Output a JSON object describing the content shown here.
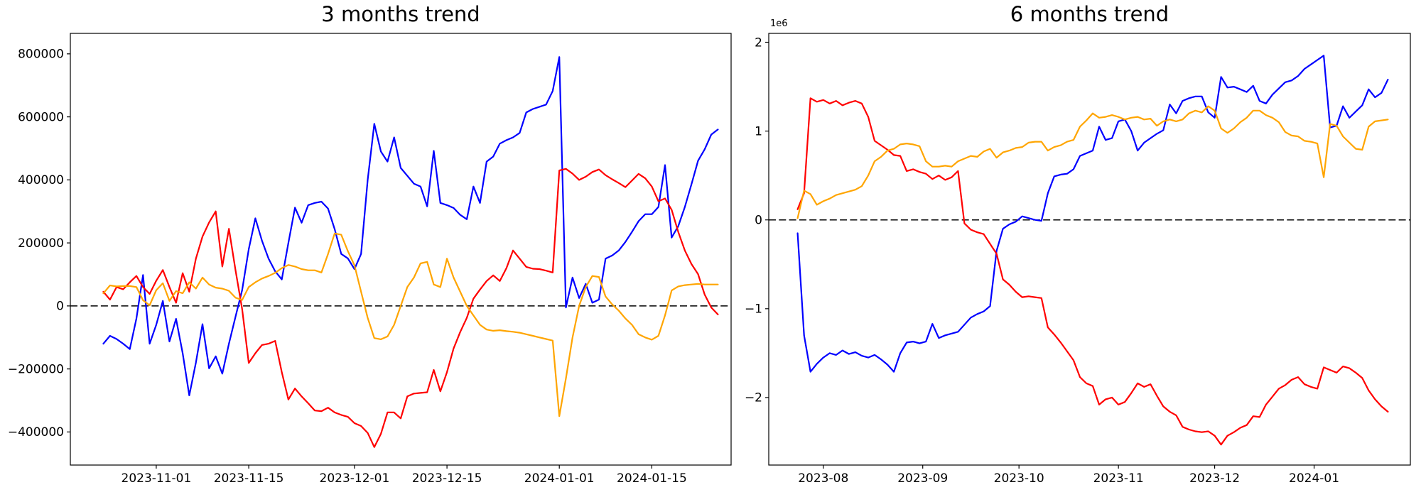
{
  "chart_data": [
    {
      "type": "line",
      "title": "3 months trend",
      "xlabel": "",
      "ylabel": "",
      "grid": false,
      "legend": null,
      "xlim": [
        "2023-10-19",
        "2024-01-27"
      ],
      "ylim": [
        -505000,
        865000
      ],
      "value_scale": 1,
      "x_start": "2023-10-24",
      "x_step_days": 1,
      "xticks": [
        {
          "date": "2023-11-01",
          "label": "2023-11-01"
        },
        {
          "date": "2023-11-15",
          "label": "2023-11-15"
        },
        {
          "date": "2023-12-01",
          "label": "2023-12-01"
        },
        {
          "date": "2023-12-15",
          "label": "2023-12-15"
        },
        {
          "date": "2024-01-01",
          "label": "2024-01-01"
        },
        {
          "date": "2024-01-15",
          "label": "2024-01-15"
        }
      ],
      "yticks": [
        {
          "value": -400000,
          "label": "−400000"
        },
        {
          "value": -200000,
          "label": "−200000"
        },
        {
          "value": 0,
          "label": "0"
        },
        {
          "value": 200000,
          "label": "200000"
        },
        {
          "value": 400000,
          "label": "400000"
        },
        {
          "value": 600000,
          "label": "600000"
        },
        {
          "value": 800000,
          "label": "800000"
        }
      ],
      "zero_line": {
        "value": 0,
        "color": "#000000",
        "style": "dashed"
      },
      "series": [
        {
          "name": "blue",
          "color": "#0000ff",
          "values": [
            -120000,
            -95000,
            -105000,
            -120000,
            -137000,
            -40000,
            98000,
            -120000,
            -60000,
            16000,
            -113000,
            -41000,
            -150000,
            -284000,
            -180000,
            -58000,
            -198000,
            -160000,
            -215000,
            -120000,
            -34000,
            50000,
            180000,
            278000,
            207000,
            150000,
            110000,
            84000,
            200000,
            312000,
            264000,
            320000,
            327000,
            331000,
            309000,
            244000,
            165000,
            151000,
            117000,
            165000,
            400000,
            578000,
            490000,
            458000,
            535000,
            438000,
            413000,
            388000,
            379000,
            316000,
            492000,
            327000,
            320000,
            311000,
            289000,
            275000,
            379000,
            327000,
            458000,
            474000,
            515000,
            526000,
            535000,
            549000,
            614000,
            625000,
            632000,
            639000,
            682000,
            790000,
            -5000,
            90000,
            25000,
            70000,
            10000,
            20000,
            150000,
            160000,
            176000,
            203000,
            235000,
            269000,
            291000,
            291000,
            314000,
            447000,
            217000,
            253000,
            314000,
            386000,
            461000,
            497000,
            544000,
            560000
          ]
        },
        {
          "name": "red",
          "color": "#ff0000",
          "values": [
            45000,
            20000,
            60000,
            53000,
            75000,
            95000,
            60000,
            38000,
            80000,
            114000,
            60000,
            10000,
            104000,
            45000,
            150000,
            220000,
            265000,
            300000,
            125000,
            245000,
            113000,
            -10000,
            -181000,
            -150000,
            -124000,
            -120000,
            -111000,
            -210000,
            -297000,
            -262000,
            -287000,
            -309000,
            -332000,
            -334000,
            -323000,
            -338000,
            -346000,
            -352000,
            -372000,
            -381000,
            -403000,
            -448000,
            -406000,
            -338000,
            -338000,
            -357000,
            -287000,
            -278000,
            -276000,
            -274000,
            -203000,
            -271000,
            -210000,
            -135000,
            -83000,
            -38000,
            23000,
            52000,
            79000,
            97000,
            79000,
            120000,
            176000,
            150000,
            124000,
            118000,
            117000,
            112000,
            106000,
            430000,
            435000,
            420000,
            400000,
            410000,
            425000,
            433000,
            415000,
            402000,
            390000,
            377000,
            398000,
            419000,
            405000,
            379000,
            332000,
            341000,
            305000,
            235000,
            176000,
            133000,
            101000,
            36000,
            -5000,
            -27000
          ]
        },
        {
          "name": "orange",
          "color": "#ffa500",
          "values": [
            40000,
            65000,
            62000,
            63000,
            63000,
            60000,
            18000,
            2000,
            50000,
            72000,
            16000,
            47000,
            40000,
            75000,
            55000,
            90000,
            68000,
            58000,
            55000,
            48000,
            26000,
            19000,
            60000,
            75000,
            87000,
            95000,
            105000,
            120000,
            130000,
            125000,
            117000,
            113000,
            113000,
            106000,
            165000,
            230000,
            226000,
            174000,
            129000,
            45000,
            -38000,
            -102000,
            -106000,
            -97000,
            -60000,
            0,
            60000,
            90000,
            135000,
            140000,
            68000,
            60000,
            150000,
            90000,
            45000,
            0,
            -30000,
            -60000,
            -75000,
            -79000,
            -77000,
            -80000,
            -82000,
            -85000,
            -90000,
            -95000,
            -100000,
            -105000,
            -110000,
            -350000,
            -230000,
            -100000,
            0,
            60000,
            95000,
            92000,
            30000,
            5000,
            -15000,
            -40000,
            -60000,
            -90000,
            -100000,
            -107000,
            -95000,
            -30000,
            49000,
            62000,
            66000,
            68000,
            70000,
            68000,
            68000,
            68000
          ]
        }
      ]
    },
    {
      "type": "line",
      "title": "6 months trend",
      "xlabel": "",
      "ylabel": "",
      "grid": false,
      "legend": null,
      "offset_text": "1e6",
      "xlim": [
        "2023-07-15",
        "2024-01-31"
      ],
      "ylim": [
        -2760000,
        2100000
      ],
      "value_scale": 1000000,
      "x_start": "2023-07-24",
      "x_step_days": 2,
      "xticks": [
        {
          "date": "2023-08-01",
          "label": "2023-08"
        },
        {
          "date": "2023-09-01",
          "label": "2023-09"
        },
        {
          "date": "2023-10-01",
          "label": "2023-10"
        },
        {
          "date": "2023-11-01",
          "label": "2023-11"
        },
        {
          "date": "2023-12-01",
          "label": "2023-12"
        },
        {
          "date": "2024-01-01",
          "label": "2024-01"
        }
      ],
      "yticks": [
        {
          "value": -2000000,
          "label": "−2"
        },
        {
          "value": -1000000,
          "label": "−1"
        },
        {
          "value": 0,
          "label": "0"
        },
        {
          "value": 1000000,
          "label": "1"
        },
        {
          "value": 2000000,
          "label": "2"
        }
      ],
      "zero_line": {
        "value": 0,
        "color": "#000000",
        "style": "dashed"
      },
      "series": [
        {
          "name": "blue",
          "color": "#0000ff",
          "values": [
            -0.15,
            -1.3,
            -1.71,
            -1.62,
            -1.55,
            -1.5,
            -1.52,
            -1.47,
            -1.51,
            -1.49,
            -1.53,
            -1.55,
            -1.52,
            -1.57,
            -1.63,
            -1.71,
            -1.5,
            -1.38,
            -1.37,
            -1.39,
            -1.37,
            -1.17,
            -1.33,
            -1.3,
            -1.28,
            -1.26,
            -1.18,
            -1.1,
            -1.06,
            -1.03,
            -0.97,
            -0.35,
            -0.1,
            -0.05,
            -0.02,
            0.04,
            0.02,
            0.0,
            -0.01,
            0.3,
            0.49,
            0.51,
            0.52,
            0.57,
            0.72,
            0.75,
            0.78,
            1.05,
            0.9,
            0.92,
            1.11,
            1.13,
            1.0,
            0.78,
            0.87,
            0.92,
            0.97,
            1.01,
            1.3,
            1.2,
            1.34,
            1.37,
            1.39,
            1.39,
            1.21,
            1.15,
            1.61,
            1.49,
            1.5,
            1.47,
            1.44,
            1.51,
            1.34,
            1.31,
            1.41,
            1.48,
            1.55,
            1.57,
            1.62,
            1.7,
            1.75,
            1.8,
            1.85,
            1.04,
            1.06,
            1.28,
            1.15,
            1.22,
            1.29,
            1.47,
            1.38,
            1.43,
            1.58
          ]
        },
        {
          "name": "red",
          "color": "#ff0000",
          "values": [
            0.12,
            0.3,
            1.37,
            1.33,
            1.35,
            1.31,
            1.34,
            1.29,
            1.32,
            1.34,
            1.31,
            1.16,
            0.89,
            0.84,
            0.79,
            0.73,
            0.72,
            0.55,
            0.57,
            0.54,
            0.52,
            0.46,
            0.5,
            0.45,
            0.48,
            0.55,
            -0.04,
            -0.11,
            -0.14,
            -0.16,
            -0.27,
            -0.38,
            -0.67,
            -0.73,
            -0.81,
            -0.87,
            -0.86,
            -0.87,
            -0.88,
            -1.21,
            -1.29,
            -1.38,
            -1.48,
            -1.58,
            -1.77,
            -1.84,
            -1.87,
            -2.08,
            -2.02,
            -2.0,
            -2.08,
            -2.05,
            -1.95,
            -1.84,
            -1.88,
            -1.85,
            -1.98,
            -2.1,
            -2.16,
            -2.2,
            -2.33,
            -2.36,
            -2.38,
            -2.39,
            -2.38,
            -2.43,
            -2.53,
            -2.43,
            -2.39,
            -2.34,
            -2.31,
            -2.21,
            -2.22,
            -2.08,
            -1.99,
            -1.9,
            -1.86,
            -1.8,
            -1.77,
            -1.85,
            -1.88,
            -1.9,
            -1.66,
            -1.69,
            -1.72,
            -1.65,
            -1.67,
            -1.72,
            -1.78,
            -1.92,
            -2.02,
            -2.1,
            -2.16
          ]
        },
        {
          "name": "orange",
          "color": "#ffa500",
          "values": [
            0.02,
            0.33,
            0.29,
            0.17,
            0.21,
            0.24,
            0.28,
            0.3,
            0.32,
            0.34,
            0.38,
            0.5,
            0.66,
            0.71,
            0.78,
            0.8,
            0.85,
            0.86,
            0.85,
            0.83,
            0.66,
            0.6,
            0.6,
            0.61,
            0.6,
            0.66,
            0.69,
            0.72,
            0.71,
            0.77,
            0.8,
            0.7,
            0.76,
            0.78,
            0.81,
            0.82,
            0.87,
            0.88,
            0.88,
            0.78,
            0.82,
            0.84,
            0.88,
            0.9,
            1.05,
            1.12,
            1.2,
            1.15,
            1.16,
            1.18,
            1.16,
            1.13,
            1.15,
            1.16,
            1.13,
            1.14,
            1.06,
            1.11,
            1.13,
            1.11,
            1.13,
            1.2,
            1.23,
            1.21,
            1.28,
            1.23,
            1.03,
            0.98,
            1.03,
            1.1,
            1.15,
            1.23,
            1.23,
            1.18,
            1.15,
            1.1,
            0.99,
            0.95,
            0.94,
            0.89,
            0.88,
            0.86,
            0.48,
            1.08,
            1.06,
            0.94,
            0.87,
            0.8,
            0.79,
            1.05,
            1.11,
            1.12,
            1.13
          ]
        }
      ]
    }
  ]
}
